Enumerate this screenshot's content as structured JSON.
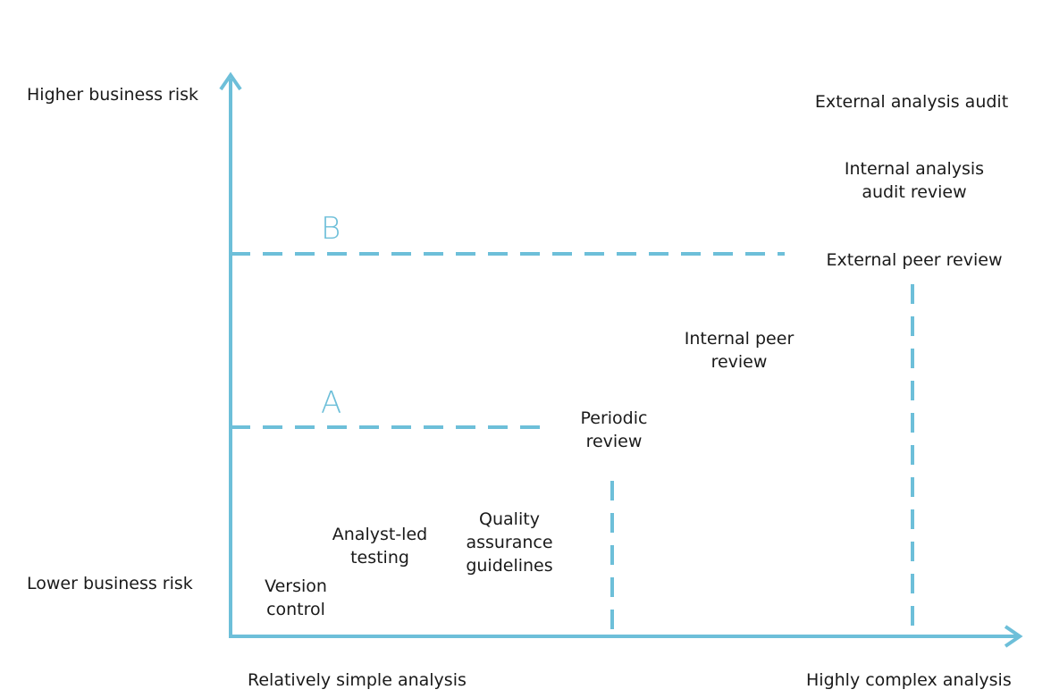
{
  "diagram": {
    "y_axis": {
      "top_label": "Higher business risk",
      "bottom_label": "Lower business risk"
    },
    "x_axis": {
      "left_label": "Relatively simple analysis",
      "right_label": "Highly complex analysis"
    },
    "thresholds": [
      {
        "label": "A"
      },
      {
        "label": "B"
      }
    ],
    "activities": [
      {
        "lines": [
          "Version",
          "control"
        ]
      },
      {
        "lines": [
          "Analyst-led",
          "testing"
        ]
      },
      {
        "lines": [
          "Quality",
          "assurance",
          "guidelines"
        ]
      },
      {
        "lines": [
          "Periodic",
          "review"
        ]
      },
      {
        "lines": [
          "Internal peer",
          "review"
        ]
      },
      {
        "lines": [
          "External peer review"
        ]
      },
      {
        "lines": [
          "Internal analysis",
          "audit review"
        ]
      },
      {
        "lines": [
          "External analysis audit"
        ]
      }
    ],
    "colors": {
      "axis": "#6dbfd9",
      "threshold_text": "#6dbfd9",
      "text": "#1a1a1a"
    }
  }
}
